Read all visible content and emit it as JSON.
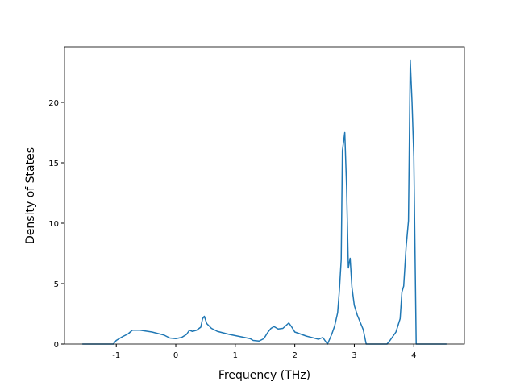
{
  "chart_data": {
    "type": "line",
    "xlabel": "Frequency (THz)",
    "ylabel": "Density of States",
    "x": [
      -1.57,
      -1.05,
      -1.0,
      -0.9,
      -0.8,
      -0.73,
      -0.6,
      -0.4,
      -0.2,
      -0.1,
      0.0,
      0.1,
      0.18,
      0.23,
      0.28,
      0.35,
      0.42,
      0.45,
      0.48,
      0.52,
      0.6,
      0.7,
      0.9,
      1.1,
      1.25,
      1.3,
      1.4,
      1.48,
      1.55,
      1.6,
      1.65,
      1.72,
      1.8,
      1.9,
      1.95,
      2.0,
      2.2,
      2.4,
      2.47,
      2.52,
      2.55,
      2.62,
      2.67,
      2.72,
      2.75,
      2.78,
      2.8,
      2.84,
      2.87,
      2.9,
      2.93,
      2.96,
      3.0,
      3.05,
      3.15,
      3.2,
      3.55,
      3.6,
      3.7,
      3.77,
      3.8,
      3.83,
      3.87,
      3.91,
      3.94,
      3.97,
      4.0,
      4.04,
      4.55
    ],
    "series": [
      {
        "color": "#1f77b4",
        "values": [
          0,
          0,
          0.3,
          0.6,
          0.85,
          1.15,
          1.15,
          1.0,
          0.75,
          0.5,
          0.45,
          0.55,
          0.8,
          1.15,
          1.05,
          1.15,
          1.4,
          2.1,
          2.3,
          1.7,
          1.3,
          1.05,
          0.8,
          0.6,
          0.45,
          0.3,
          0.25,
          0.45,
          1.0,
          1.3,
          1.45,
          1.25,
          1.3,
          1.75,
          1.4,
          1.0,
          0.65,
          0.4,
          0.55,
          0.2,
          0,
          0.8,
          1.5,
          2.6,
          4.5,
          7,
          16,
          17.5,
          13,
          6.3,
          7.1,
          4.7,
          3.2,
          2.4,
          1.2,
          0,
          0,
          0.3,
          1.0,
          2.1,
          4.3,
          4.8,
          8,
          10.2,
          23.5,
          20,
          15.5,
          0,
          0
        ]
      }
    ],
    "xlim": [
      -1.87,
      4.85
    ],
    "xticks": [
      -1,
      0,
      1,
      2,
      3,
      4
    ],
    "ylim": [
      0,
      24.6
    ],
    "yticks": [
      0,
      5,
      10,
      15,
      20
    ]
  }
}
